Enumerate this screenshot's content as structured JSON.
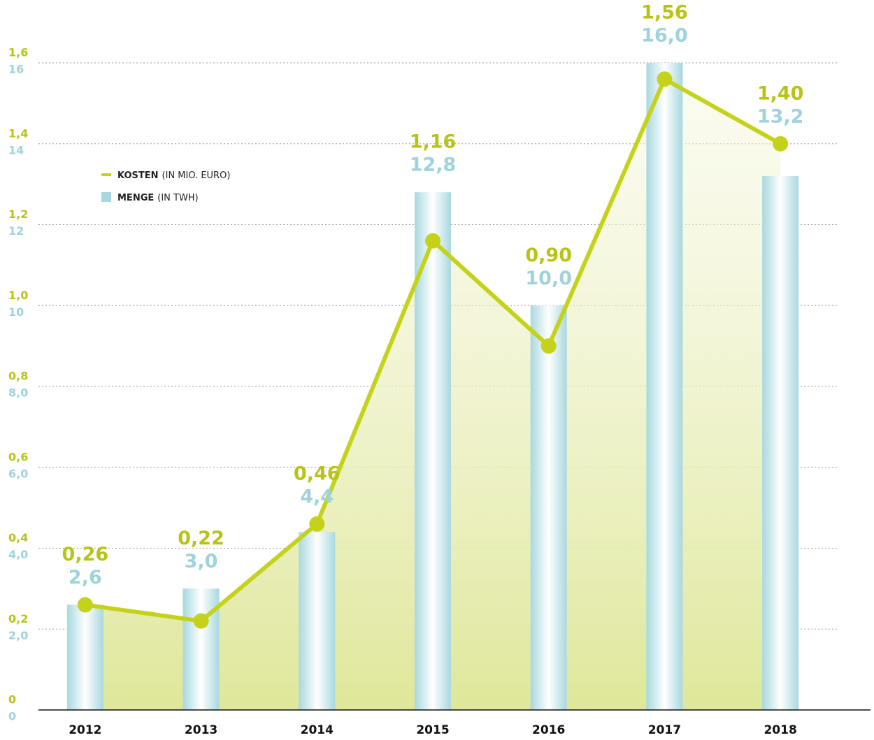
{
  "chart_data": {
    "type": "bar",
    "categories": [
      "2012",
      "2013",
      "2014",
      "2015",
      "2016",
      "2017",
      "2018"
    ],
    "series": [
      {
        "name": "MENGE",
        "unit": "(IN TWH)",
        "type": "bar",
        "axis": "y2",
        "color": "#a8d8df",
        "values": [
          2.6,
          3.0,
          4.4,
          12.8,
          10.0,
          16.0,
          13.2
        ],
        "value_labels": [
          "2,6",
          "3,0",
          "4,4",
          "12,8",
          "10,0",
          "16,0",
          "13,2"
        ]
      },
      {
        "name": "KOSTEN",
        "unit": "(IN MIO. EURO)",
        "type": "line",
        "axis": "y",
        "color": "#c5d21a",
        "values": [
          0.26,
          0.22,
          0.46,
          1.16,
          0.9,
          1.56,
          1.4
        ],
        "value_labels": [
          "0,26",
          "0,22",
          "0,46",
          "1,16",
          "0,90",
          "1,56",
          "1,40"
        ]
      }
    ],
    "ylim": [
      0,
      1.6
    ],
    "yticks": [
      0,
      {
        "value": 0.2,
        "label": "0,2"
      },
      {
        "value": 0.4,
        "label": "0,4"
      },
      {
        "value": 0.6,
        "label": "0,6"
      },
      {
        "value": 0.8,
        "label": "0,8"
      },
      {
        "value": 1.0,
        "label": "1,0"
      },
      {
        "value": 1.2,
        "label": "1,2"
      },
      {
        "value": 1.4,
        "label": "1,4"
      },
      {
        "value": 1.6,
        "label": "1,6"
      }
    ],
    "y2lim": [
      0,
      16
    ],
    "y2ticks": [
      0,
      {
        "value": 2,
        "label": "2,0"
      },
      {
        "value": 4,
        "label": "4,0"
      },
      {
        "value": 6,
        "label": "6,0"
      },
      {
        "value": 8,
        "label": "8,0"
      },
      10,
      12,
      14,
      16
    ],
    "grid": true
  }
}
